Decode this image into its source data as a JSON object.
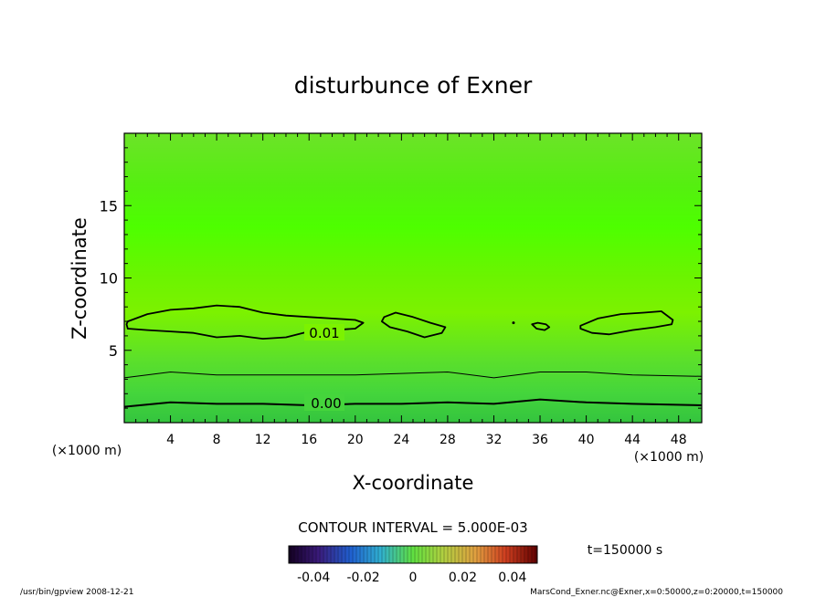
{
  "chart_data": {
    "type": "contour",
    "title": "disturbunce of Exner",
    "xlabel": "X-coordinate",
    "ylabel": "Z-coordinate",
    "x_unit": "(×1000 m)",
    "y_unit": "(×1000 m)",
    "x_ticks": [
      4,
      8,
      12,
      16,
      20,
      24,
      28,
      32,
      36,
      40,
      44,
      48
    ],
    "y_ticks": [
      5,
      10,
      15
    ],
    "xlim": [
      0,
      50
    ],
    "ylim": [
      0,
      20
    ],
    "contour_interval": "CONTOUR INTERVAL = 5.000E-03",
    "contour_labels": [
      "0.01",
      "0.00"
    ],
    "colorbar": {
      "ticks": [
        "-0.04",
        "-0.02",
        "0",
        "0.02",
        "0.04"
      ],
      "range": [
        -0.05,
        0.05
      ]
    },
    "time_label": "t=150000 s",
    "contour_lines": [
      {
        "name": "0.00",
        "level": 0.0,
        "x": [
          0,
          4,
          8,
          12,
          16,
          20,
          24,
          28,
          32,
          36,
          40,
          44,
          50
        ],
        "y": [
          1.1,
          1.4,
          1.3,
          1.3,
          1.2,
          1.3,
          1.3,
          1.4,
          1.3,
          1.6,
          1.4,
          1.3,
          1.2
        ]
      },
      {
        "name": "0.005",
        "level": 0.005,
        "x": [
          0,
          4,
          8,
          12,
          16,
          20,
          24,
          28,
          32,
          36,
          40,
          44,
          50
        ],
        "y": [
          3.1,
          3.5,
          3.3,
          3.3,
          3.3,
          3.3,
          3.4,
          3.5,
          3.1,
          3.5,
          3.5,
          3.3,
          3.2
        ]
      }
    ],
    "closed_contours": [
      {
        "name": "0.01",
        "level": 0.01,
        "x": [
          0.3,
          2,
          4,
          6,
          8,
          10,
          12,
          14,
          16,
          18,
          20,
          20.7,
          20,
          18,
          16,
          14,
          12,
          10,
          8,
          6,
          4,
          2,
          0.3,
          0.2,
          0.3
        ],
        "y": [
          7.0,
          7.5,
          7.8,
          7.9,
          8.1,
          8.0,
          7.6,
          7.4,
          7.3,
          7.2,
          7.1,
          6.9,
          6.5,
          6.4,
          6.3,
          5.9,
          5.8,
          6.0,
          5.9,
          6.2,
          6.3,
          6.4,
          6.5,
          6.8,
          7.0
        ]
      },
      {
        "name": "0.01",
        "level": 0.01,
        "x": [
          22.5,
          23.5,
          25,
          26.5,
          27.8,
          27.5,
          26,
          24.5,
          23,
          22.3,
          22.5
        ],
        "y": [
          7.3,
          7.6,
          7.3,
          6.9,
          6.6,
          6.2,
          5.9,
          6.3,
          6.6,
          7.0,
          7.3
        ]
      },
      {
        "name": "0.01",
        "level": 0.01,
        "x": [
          35.3,
          35.8,
          36.5,
          36.8,
          36.4,
          35.7,
          35.3
        ],
        "y": [
          6.8,
          6.9,
          6.8,
          6.6,
          6.4,
          6.5,
          6.8
        ]
      },
      {
        "name": "0.01",
        "level": 0.01,
        "x": [
          39.5,
          41,
          43,
          45,
          46.5,
          47.5,
          47.4,
          46,
          44,
          42,
          40.5,
          39.5,
          39.5
        ],
        "y": [
          6.7,
          7.2,
          7.5,
          7.6,
          7.7,
          7.1,
          6.8,
          6.6,
          6.4,
          6.1,
          6.2,
          6.5,
          6.7
        ]
      },
      {
        "name": "0.01",
        "level": 0.01,
        "x": [
          33.7
        ],
        "y": [
          6.9
        ]
      }
    ]
  },
  "footer": {
    "left": "/usr/bin/gpview   2008-12-21",
    "right": "MarsCond_Exner.nc@Exner,x=0:50000,z=0:20000,t=150000"
  },
  "colors": {
    "field_top": "#66e61a",
    "field_band": "#4dff00",
    "field_mid": "#7cf000",
    "field_low": "#45d438",
    "field_bottom": "#38c63a",
    "contour": "#000000"
  }
}
